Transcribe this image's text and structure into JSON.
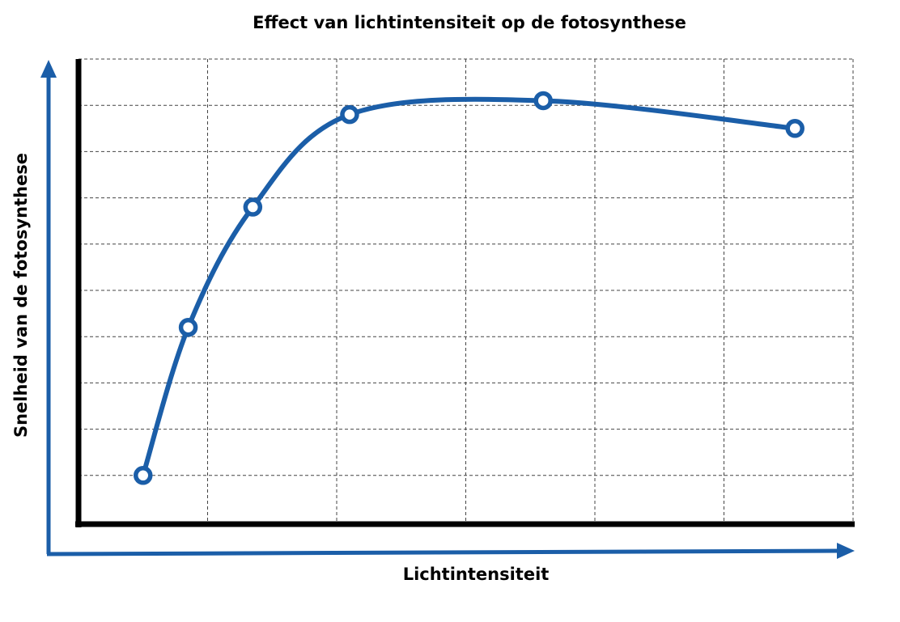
{
  "chart_data": {
    "type": "line",
    "title": "Effect van lichtintensiteit op de fotosynthese",
    "x_label": "Lichtintensiteit",
    "y_label": "Snelheid van de fotosynthese",
    "x": [
      0.5,
      0.85,
      1.35,
      2.1,
      3.6,
      5.55
    ],
    "series": [
      {
        "color": "#1b5ea8",
        "values": [
          1.0,
          4.2,
          6.8,
          8.8,
          9.1,
          8.5
        ]
      }
    ],
    "xlim": [
      0,
      6
    ],
    "ylim": [
      0,
      10
    ],
    "xticks": [
      1,
      2,
      3,
      4,
      5,
      6
    ],
    "yticks": [
      1,
      2,
      3,
      4,
      5,
      6,
      7,
      8,
      9,
      10
    ],
    "grid": true,
    "tick_labels": false,
    "smooth": true
  }
}
